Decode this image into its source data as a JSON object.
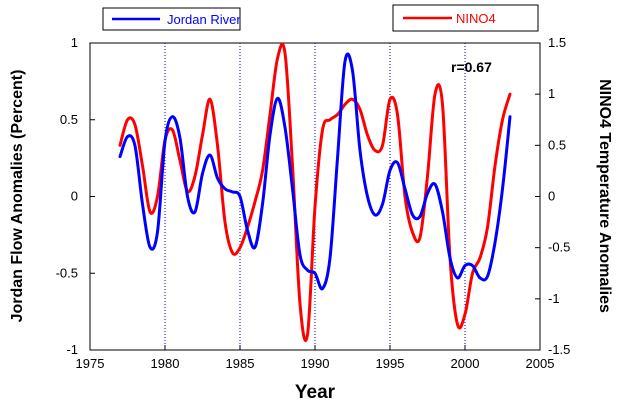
{
  "chart_data": {
    "type": "line",
    "xlabel": "Year",
    "ylabel_left": "Jordan Flow Anomalies (Percent)",
    "ylabel_right": "NINO4 Temperature Anomalies",
    "annotation": "r=0.67",
    "xlim": [
      1975,
      2005
    ],
    "ylim_left": [
      -1,
      1
    ],
    "ylim_right": [
      -1.5,
      1.5
    ],
    "x_ticks": [
      "1975",
      "1980",
      "1985",
      "1990",
      "1995",
      "2000",
      "2005"
    ],
    "y_left_ticks": [
      "-1",
      "-0.5",
      "0",
      "0.5",
      "1"
    ],
    "y_right_ticks": [
      "-1.5",
      "-1",
      "-0.5",
      "0",
      "0.5",
      "1",
      "1.5"
    ],
    "vertical_gridlines_at": [
      1980,
      1985,
      1990,
      1995,
      2000
    ],
    "legend": {
      "left_label": "Jordan River",
      "right_label": "NINO4"
    },
    "series": [
      {
        "name": "Jordan River",
        "axis": "left",
        "color": "#0000ff",
        "x": [
          1977.0,
          1977.5,
          1978.0,
          1978.5,
          1979.0,
          1979.5,
          1980.0,
          1980.5,
          1981.0,
          1981.5,
          1982.0,
          1982.5,
          1983.0,
          1983.5,
          1984.0,
          1984.5,
          1985.0,
          1985.5,
          1986.0,
          1986.5,
          1987.0,
          1987.5,
          1988.0,
          1988.5,
          1989.0,
          1989.5,
          1990.0,
          1990.5,
          1991.0,
          1991.5,
          1992.0,
          1992.5,
          1993.0,
          1993.5,
          1994.0,
          1994.5,
          1995.0,
          1995.5,
          1996.0,
          1996.5,
          1997.0,
          1997.5,
          1998.0,
          1998.5,
          1999.0,
          1999.5,
          2000.0,
          2000.5,
          2001.0,
          2001.5,
          2002.0,
          2002.5,
          2003.0
        ],
        "values": [
          0.26,
          0.39,
          0.33,
          -0.05,
          -0.33,
          -0.23,
          0.36,
          0.52,
          0.38,
          0.0,
          -0.1,
          0.15,
          0.27,
          0.12,
          0.05,
          0.03,
          0.0,
          -0.22,
          -0.33,
          -0.05,
          0.4,
          0.64,
          0.45,
          0.05,
          -0.38,
          -0.48,
          -0.5,
          -0.6,
          -0.4,
          0.25,
          0.88,
          0.82,
          0.3,
          0.0,
          -0.12,
          -0.05,
          0.17,
          0.22,
          0.05,
          -0.12,
          -0.13,
          0.02,
          0.08,
          -0.1,
          -0.4,
          -0.53,
          -0.45,
          -0.45,
          -0.53,
          -0.52,
          -0.3,
          0.05,
          0.52
        ]
      },
      {
        "name": "NINO4",
        "axis": "right",
        "color": "#ff0000",
        "x": [
          1977.0,
          1977.5,
          1978.0,
          1978.5,
          1979.0,
          1979.5,
          1980.0,
          1980.5,
          1981.0,
          1981.5,
          1982.0,
          1982.5,
          1983.0,
          1983.5,
          1984.0,
          1984.5,
          1985.0,
          1985.5,
          1986.0,
          1986.5,
          1987.0,
          1987.5,
          1988.0,
          1988.5,
          1989.0,
          1989.5,
          1990.0,
          1990.5,
          1991.0,
          1991.5,
          1992.0,
          1992.5,
          1993.0,
          1993.5,
          1994.0,
          1994.5,
          1995.0,
          1995.5,
          1996.0,
          1996.5,
          1997.0,
          1997.5,
          1998.0,
          1998.5,
          1999.0,
          1999.5,
          2000.0,
          2000.5,
          2001.0,
          2001.5,
          2002.0,
          2002.5,
          2003.0
        ],
        "values": [
          0.5,
          0.75,
          0.7,
          0.3,
          -0.15,
          0.0,
          0.55,
          0.65,
          0.35,
          0.05,
          0.2,
          0.6,
          0.95,
          0.5,
          -0.25,
          -0.55,
          -0.5,
          -0.3,
          -0.05,
          0.25,
          0.8,
          1.35,
          1.4,
          0.3,
          -1.05,
          -1.35,
          -0.1,
          0.65,
          0.75,
          0.8,
          0.9,
          0.95,
          0.85,
          0.6,
          0.45,
          0.5,
          0.95,
          0.8,
          0.0,
          -0.35,
          -0.4,
          0.2,
          1.0,
          0.9,
          -0.6,
          -1.25,
          -1.15,
          -0.75,
          -0.6,
          -0.3,
          0.3,
          0.75,
          1.0
        ]
      }
    ]
  }
}
